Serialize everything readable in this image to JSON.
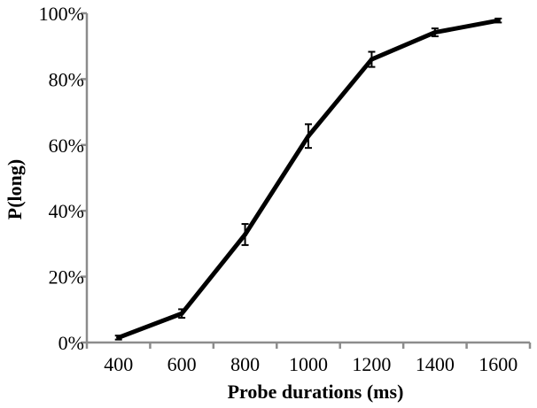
{
  "chart_data": {
    "type": "line",
    "title": "",
    "xlabel": "Probe durations (ms)",
    "ylabel": "P(long)",
    "x": [
      400,
      600,
      800,
      1000,
      1200,
      1400,
      1600
    ],
    "xlim": [
      300,
      1700
    ],
    "ylim": [
      0,
      100
    ],
    "x_ticks": [
      400,
      600,
      800,
      1000,
      1200,
      1400,
      1600
    ],
    "y_ticks": [
      0,
      20,
      40,
      60,
      80,
      100
    ],
    "x_tick_labels": [
      "400",
      "600",
      "800",
      "1000",
      "1200",
      "1400",
      "1600"
    ],
    "y_tick_labels": [
      "0%",
      "20%",
      "40%",
      "60%",
      "80%",
      "100%"
    ],
    "series": [
      {
        "values": [
          1.5,
          8.8,
          32.8,
          62.7,
          86.0,
          94.2,
          97.8
        ],
        "errors": [
          0.6,
          1.3,
          3.2,
          3.6,
          2.3,
          1.2,
          0.6
        ],
        "color": "#000000"
      }
    ],
    "grid": false,
    "legend": "none"
  }
}
